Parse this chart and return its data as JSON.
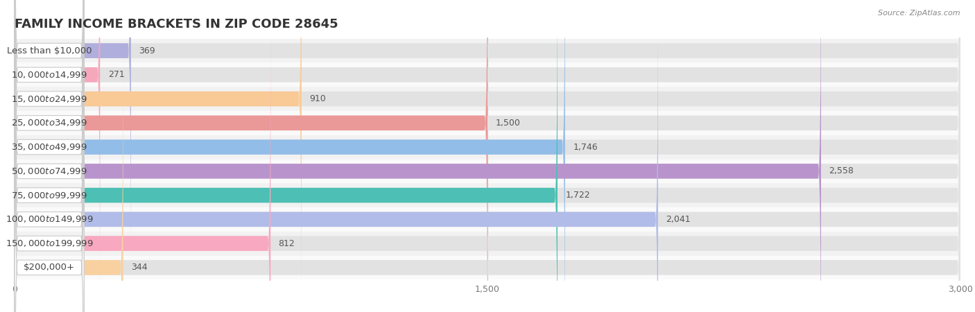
{
  "title": "FAMILY INCOME BRACKETS IN ZIP CODE 28645",
  "source": "Source: ZipAtlas.com",
  "categories": [
    "Less than $10,000",
    "$10,000 to $14,999",
    "$15,000 to $24,999",
    "$25,000 to $34,999",
    "$35,000 to $49,999",
    "$50,000 to $74,999",
    "$75,000 to $99,999",
    "$100,000 to $149,999",
    "$150,000 to $199,999",
    "$200,000+"
  ],
  "values": [
    369,
    271,
    910,
    1500,
    1746,
    2558,
    1722,
    2041,
    812,
    344
  ],
  "bar_colors": [
    "#b0aedd",
    "#f5a8bc",
    "#f9ca96",
    "#eb9898",
    "#92bde8",
    "#b994cc",
    "#4dbfb4",
    "#b2bce8",
    "#f8a8c0",
    "#f9d0a0"
  ],
  "row_bg_colors": [
    "#f0f0f0",
    "#fafafa"
  ],
  "bar_bg_color": "#e2e2e2",
  "xlim": [
    0,
    3000
  ],
  "xticks": [
    0,
    1500,
    3000
  ],
  "background_color": "#ffffff",
  "title_fontsize": 13,
  "label_fontsize": 9.5,
  "value_fontsize": 9
}
